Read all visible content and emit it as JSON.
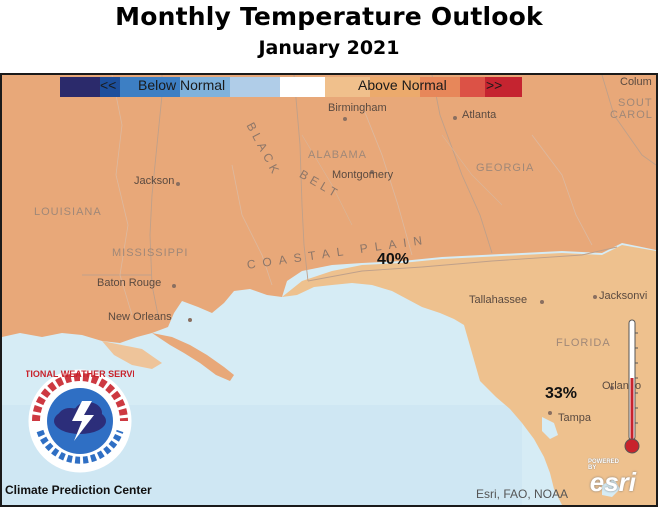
{
  "title": "Monthly Temperature Outlook",
  "subtitle": "January 2021",
  "legend": {
    "below_label": "Below Normal",
    "below_arrows": "<<",
    "above_label": "Above Normal",
    "above_arrows": ">>",
    "colors": [
      "#2b2a6b",
      "#1d4f9c",
      "#3d7fc4",
      "#7fb2dc",
      "#b0cde8",
      "#ffffff",
      "#f0c08c",
      "#ecaa6c",
      "#e7875a",
      "#dc5246",
      "#c52430"
    ]
  },
  "map": {
    "land_color": "#e8a879",
    "florida_color": "#eec18e",
    "water_color": "#d6ecf5",
    "places": {
      "birmingham": "Birmingham",
      "atlanta": "Atlanta",
      "jackson": "Jackson",
      "montgomery": "Montgomery",
      "baton_rouge": "Baton Rouge",
      "new_orleans": "New Orleans",
      "tallahassee": "Tallahassee",
      "jacksonville": "Jacksonvi",
      "orlando": "Orlando",
      "tampa": "Tampa",
      "columbia": "Colum"
    },
    "regions": {
      "louisiana": "LOUISIANA",
      "mississippi": "MISSISSIPPI",
      "alabama": "ALABAMA",
      "georgia": "GEORGIA",
      "florida": "FLORIDA",
      "south_carolina_1": "SOUT",
      "south_carolina_2": "CAROL",
      "black_belt_1": "BLACK",
      "black_belt_2": "BELT",
      "coastal_plain": "COASTAL PLAIN"
    },
    "probabilities": {
      "gulf_coast": "40%",
      "florida": "33%"
    }
  },
  "attribution": "Esri, FAO, NOAA",
  "credit": "Climate Prediction Center",
  "esri_logo": {
    "powered_by": "POWERED BY",
    "name": "esri"
  },
  "nws_logo": {
    "text": "NATIONAL WEATHER SERVICE"
  },
  "icons": [
    "nws-logo-icon",
    "thermometer-icon",
    "esri-logo-icon"
  ]
}
